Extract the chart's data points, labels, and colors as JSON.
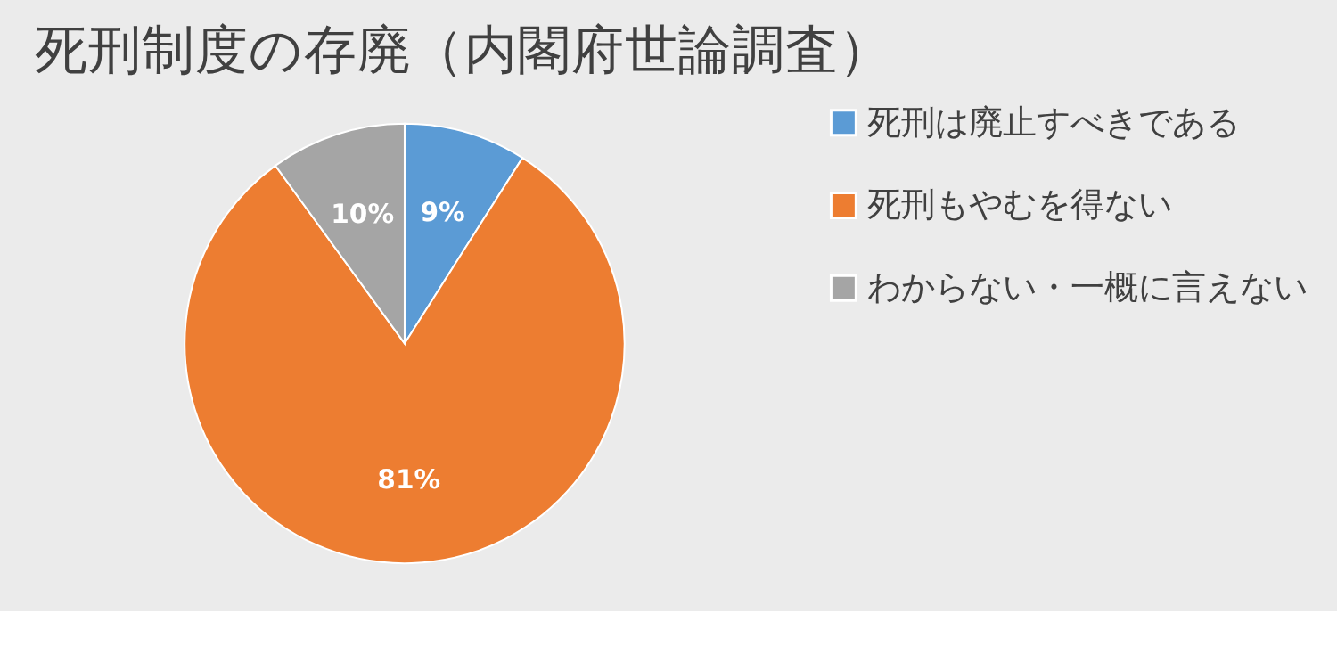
{
  "chart_data": {
    "type": "pie",
    "title": "死刑制度の存廃（内閣府世論調査）",
    "categories": [
      "死刑は廃止すべきである",
      "死刑もやむを得ない",
      "わからない・一概に言えない"
    ],
    "values": [
      9,
      81,
      10
    ],
    "colors": [
      "#5b9bd5",
      "#ed7d31",
      "#a5a5a5"
    ],
    "value_labels": [
      "9%",
      "81%",
      "10%"
    ],
    "legend": "right"
  }
}
